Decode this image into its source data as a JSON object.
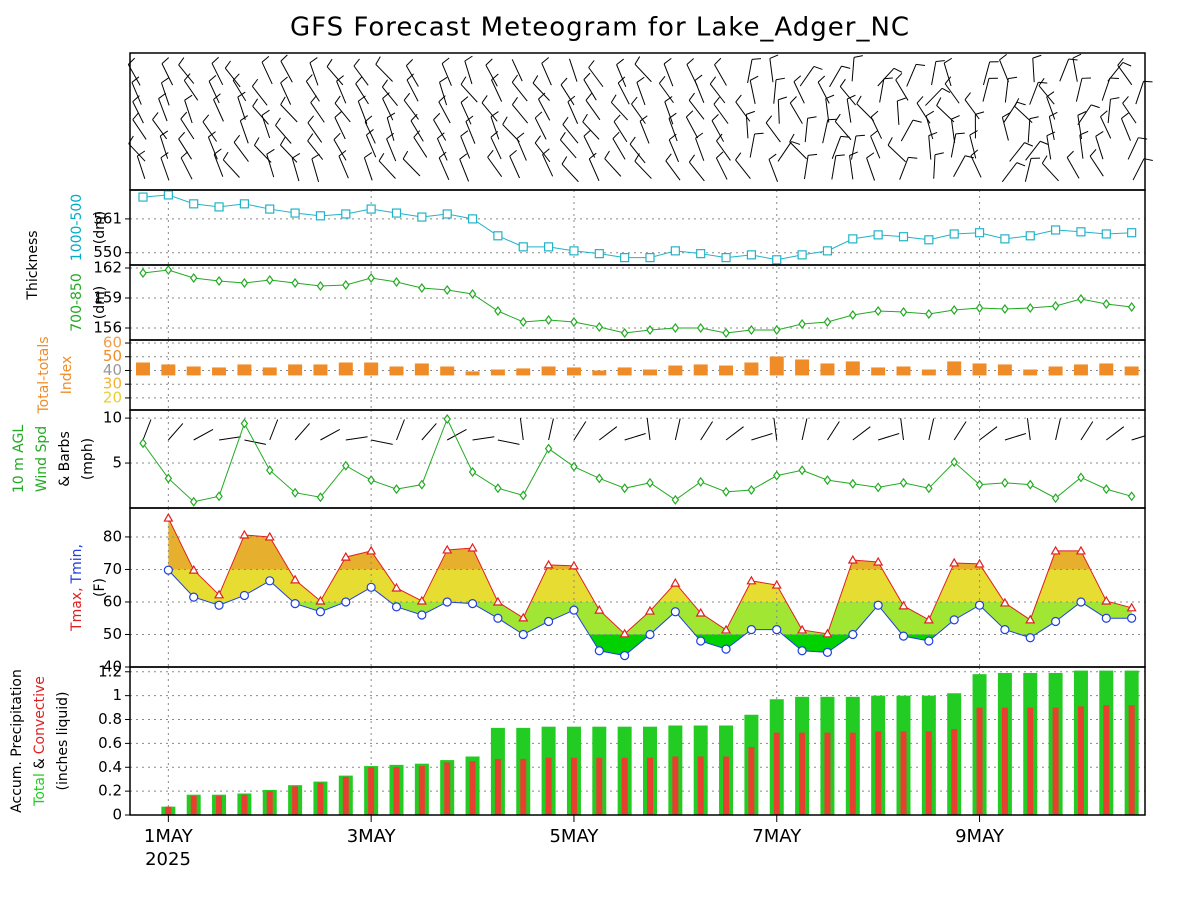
{
  "title": "GFS Forecast Meteogram for Lake_Adger_NC",
  "thickness_label": "Thickness",
  "x_axis": {
    "categories": [
      null,
      "1MAY",
      null,
      null,
      null,
      null,
      null,
      null,
      null,
      "3MAY",
      null,
      null,
      null,
      null,
      null,
      null,
      null,
      "5MAY",
      null,
      null,
      null,
      null,
      null,
      null,
      null,
      "7MAY",
      null,
      null,
      null,
      null,
      null,
      null,
      null,
      "9MAY",
      null,
      null,
      null,
      null,
      null,
      null
    ],
    "year": "2025"
  },
  "chart_data": [
    {
      "type": "line",
      "ylabel": [
        [
          {
            "text": "1000-500",
            "color": "#00aec8"
          }
        ],
        [
          {
            "text": "(dm)",
            "color": "#000000"
          }
        ]
      ],
      "ylim": [
        546,
        570.4
      ],
      "yticks": [
        550,
        561
      ],
      "grid": true,
      "series": [
        {
          "color": "#20b4c8",
          "marker": "square",
          "values": [
            568.1,
            568.8,
            565.9,
            564.9,
            565.9,
            564.2,
            562.9,
            562.0,
            562.6,
            564.2,
            562.9,
            561.6,
            562.6,
            561.0,
            555.5,
            551.9,
            551.9,
            550.6,
            549.7,
            548.4,
            548.4,
            550.6,
            549.7,
            548.4,
            549.3,
            547.7,
            549.3,
            550.6,
            554.5,
            555.8,
            555.2,
            554.2,
            556.1,
            556.5,
            554.5,
            555.5,
            557.4,
            556.8,
            556.1,
            556.5
          ]
        }
      ]
    },
    {
      "type": "line",
      "ylabel": [
        [
          {
            "text": "700-850",
            "color": "#22aa22"
          }
        ],
        [
          {
            "text": "(dm)",
            "color": "#000000"
          }
        ]
      ],
      "ylim": [
        154.8,
        162.3
      ],
      "yticks": [
        156,
        159,
        162
      ],
      "grid": true,
      "series": [
        {
          "color": "#22aa22",
          "marker": "diamond",
          "values": [
            161.5,
            161.8,
            161.0,
            160.7,
            160.5,
            160.8,
            160.5,
            160.2,
            160.3,
            161.0,
            160.6,
            160.0,
            159.8,
            159.4,
            157.7,
            156.6,
            156.8,
            156.6,
            156.1,
            155.5,
            155.8,
            156.0,
            156.0,
            155.5,
            155.8,
            155.8,
            156.4,
            156.6,
            157.3,
            157.7,
            157.6,
            157.4,
            157.8,
            158.0,
            157.9,
            158.0,
            158.2,
            158.9,
            158.4,
            158.1
          ]
        }
      ]
    },
    {
      "type": "bar",
      "ylabel": [
        [
          {
            "text": "Total-totals",
            "color": "#f08c28"
          }
        ],
        [
          {
            "text": "Index",
            "color": "#f08c28"
          }
        ]
      ],
      "ylim": [
        11.2,
        62.2
      ],
      "yticks": [
        20,
        30,
        40,
        50,
        60
      ],
      "ytick_colors": [
        "#e8d030",
        "#f0b432",
        "#999999",
        "#f08c28",
        "#f0a050"
      ],
      "grid": true,
      "base": 36.4,
      "series": [
        {
          "color": "#f08c28",
          "values": [
            45.8,
            44.4,
            42.9,
            42.2,
            44.4,
            42.2,
            44.4,
            44.4,
            45.8,
            45.8,
            42.9,
            45.1,
            42.9,
            39.3,
            40.7,
            41.5,
            42.9,
            42.2,
            40.0,
            42.2,
            40.7,
            43.6,
            44.4,
            43.6,
            45.8,
            50.2,
            48.0,
            45.1,
            46.6,
            42.2,
            42.9,
            40.7,
            46.6,
            45.1,
            44.4,
            40.7,
            42.9,
            44.4,
            45.1,
            42.9
          ]
        }
      ]
    },
    {
      "type": "line",
      "ylabel": [
        [
          {
            "text": "10 m AGL",
            "color": "#22aa22"
          }
        ],
        [
          {
            "text": "Wind Spd",
            "color": "#22aa22"
          }
        ],
        [
          {
            "text": "& Barbs",
            "color": "#000000"
          }
        ],
        [
          {
            "text": "(mph)",
            "color": "#000000"
          }
        ]
      ],
      "ylim": [
        0,
        10.9
      ],
      "yticks": [
        5,
        10
      ],
      "grid": true,
      "series": [
        {
          "color": "#22aa22",
          "marker": "diamond",
          "values": [
            7.2,
            3.3,
            0.7,
            1.3,
            9.4,
            4.2,
            1.7,
            1.2,
            4.7,
            3.1,
            2.1,
            2.6,
            9.9,
            4.0,
            2.2,
            1.4,
            6.6,
            4.6,
            3.3,
            2.2,
            2.8,
            0.9,
            2.9,
            1.8,
            2.0,
            3.6,
            4.2,
            3.1,
            2.7,
            2.3,
            2.8,
            2.2,
            5.1,
            2.6,
            2.8,
            2.6,
            1.1,
            3.4,
            2.1,
            1.3
          ]
        }
      ]
    },
    {
      "type": "range",
      "ylabel": [
        [
          {
            "text": "Tmax,",
            "color": "#e02020"
          },
          {
            "text": "Tmin,",
            "color": "#2040e0"
          }
        ],
        [
          {
            "text": "(F)",
            "color": "#000000"
          }
        ]
      ],
      "ylim": [
        40,
        88.9
      ],
      "yticks": [
        40,
        50,
        60,
        70,
        80
      ],
      "grid": true,
      "bands": {
        "values": [
          40,
          50,
          60,
          70
        ],
        "colors": [
          "#00d200",
          "#a0e632",
          "#e6dc32",
          "#e6af2d"
        ]
      },
      "series": [
        {
          "color": "#e02020",
          "marker": "triangle",
          "values": [
            null,
            85.8,
            69.8,
            62.2,
            80.6,
            80.0,
            66.8,
            60.3,
            73.8,
            75.7,
            64.3,
            60.3,
            76.0,
            76.6,
            60.0,
            55.1,
            71.4,
            71.1,
            57.5,
            50.2,
            57.2,
            65.8,
            56.6,
            51.4,
            66.5,
            65.2,
            51.4,
            50.2,
            72.9,
            72.3,
            58.8,
            54.5,
            72.0,
            71.7,
            59.7,
            54.5,
            75.7,
            75.7,
            60.3,
            58.2
          ]
        },
        {
          "color": "#2040e0",
          "marker": "circle",
          "values": [
            null,
            69.8,
            61.5,
            59.0,
            62.0,
            66.5,
            59.5,
            57.0,
            60.0,
            64.5,
            58.5,
            56.0,
            60.0,
            59.5,
            55.0,
            50.0,
            54.0,
            57.5,
            45.0,
            43.5,
            50.0,
            57.0,
            48.0,
            45.5,
            51.5,
            51.5,
            45.0,
            44.5,
            50.0,
            59.0,
            49.5,
            48.0,
            54.5,
            59.0,
            51.5,
            49.0,
            54.0,
            60.0,
            55.0,
            55.0
          ]
        }
      ]
    },
    {
      "type": "bar",
      "ylabel": [
        [
          {
            "text": "Accum. Precipitation",
            "color": "#000000"
          }
        ],
        [
          {
            "text": "Total",
            "color": "#22cc22"
          },
          {
            "text": "&",
            "color": "#000000"
          },
          {
            "text": "Convective",
            "color": "#e02020"
          }
        ],
        [
          {
            "text": "(inches liquid)",
            "color": "#000000"
          }
        ]
      ],
      "ylim": [
        0,
        1.24
      ],
      "yticks": [
        0,
        0.2,
        0.4,
        0.6,
        0.8,
        1,
        1.2
      ],
      "grid": true,
      "base": 0,
      "series": [
        {
          "color": "#22cc22",
          "values": [
            null,
            0.07,
            0.17,
            0.17,
            0.18,
            0.21,
            0.25,
            0.28,
            0.33,
            0.41,
            0.42,
            0.43,
            0.46,
            0.49,
            0.73,
            0.73,
            0.74,
            0.74,
            0.74,
            0.74,
            0.74,
            0.75,
            0.75,
            0.75,
            0.84,
            0.97,
            0.99,
            0.99,
            0.99,
            1.0,
            1.0,
            1.0,
            1.02,
            1.18,
            1.19,
            1.19,
            1.19,
            1.21,
            1.21,
            1.21
          ]
        },
        {
          "color": "#e84030",
          "values": [
            null,
            0.07,
            0.16,
            0.16,
            0.17,
            0.2,
            0.24,
            0.27,
            0.32,
            0.4,
            0.4,
            0.41,
            0.44,
            0.45,
            0.47,
            0.47,
            0.48,
            0.48,
            0.48,
            0.48,
            0.48,
            0.49,
            0.49,
            0.49,
            0.57,
            0.69,
            0.69,
            0.69,
            0.69,
            0.7,
            0.7,
            0.7,
            0.72,
            0.9,
            0.9,
            0.9,
            0.9,
            0.91,
            0.92,
            0.92
          ]
        }
      ]
    }
  ]
}
